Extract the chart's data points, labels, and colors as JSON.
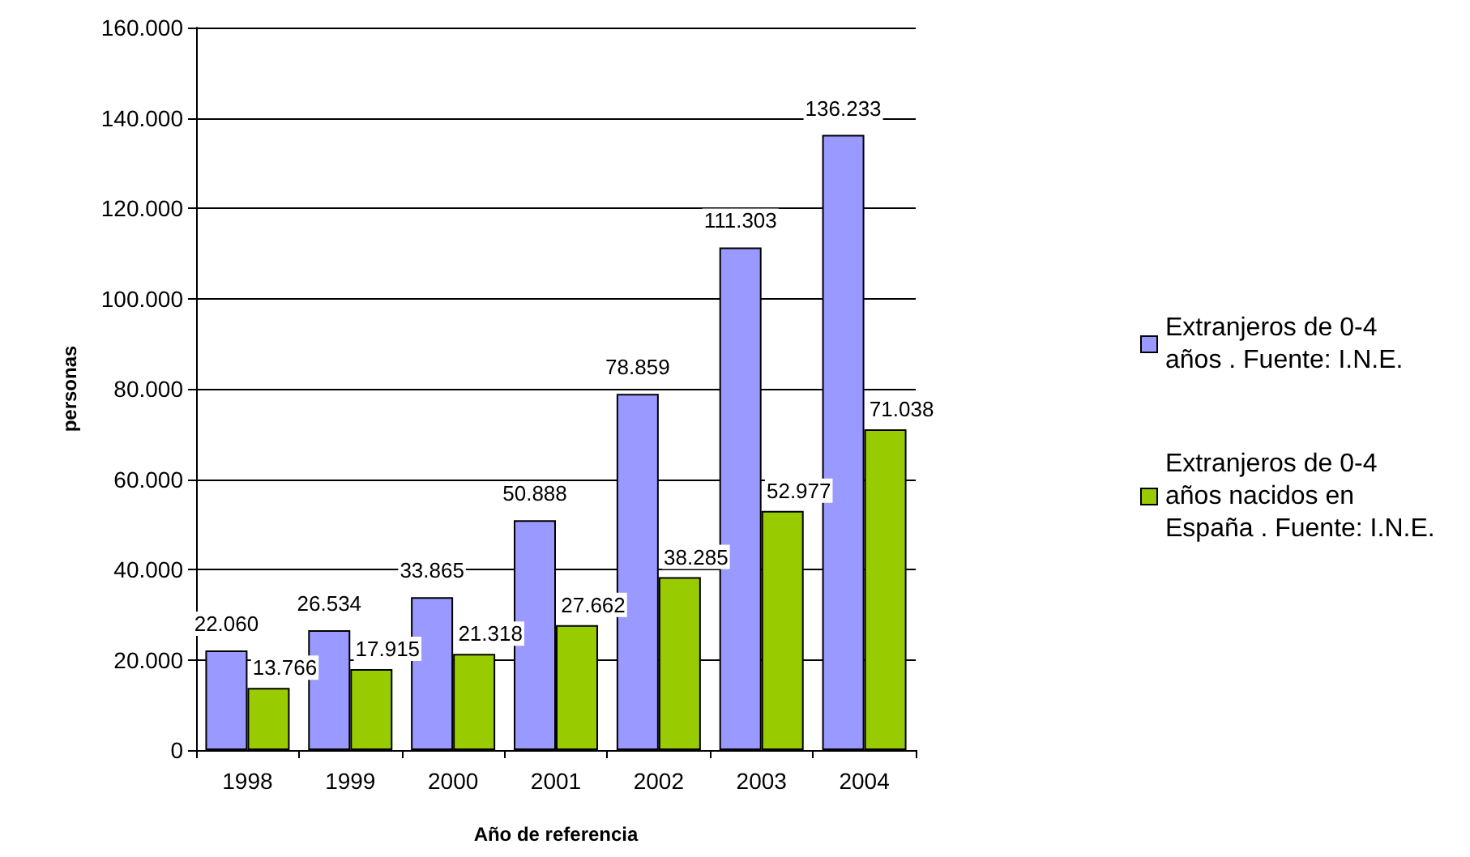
{
  "chart_data": {
    "type": "bar",
    "xlabel": "Año de referencia",
    "ylabel": "personas",
    "categories": [
      "1998",
      "1999",
      "2000",
      "2001",
      "2002",
      "2003",
      "2004"
    ],
    "series": [
      {
        "name": "Extranjeros de 0-4 años . Fuente: I.N.E.",
        "color": "#9999ff",
        "values": [
          22060,
          26534,
          33865,
          50888,
          78859,
          111303,
          136233
        ],
        "value_labels": [
          "22.060",
          "26.534",
          "33.865",
          "50.888",
          "78.859",
          "111.303",
          "136.233"
        ]
      },
      {
        "name": "Extranjeros de 0-4 años nacidos en España . Fuente: I.N.E.",
        "color": "#99cc00",
        "values": [
          13766,
          17915,
          21318,
          27662,
          38285,
          52977,
          71038
        ],
        "value_labels": [
          "13.766",
          "17.915",
          "21.318",
          "27.662",
          "38.285",
          "52.977",
          "71.038"
        ]
      }
    ],
    "ylim": [
      0,
      160000
    ],
    "yticks": [
      {
        "value": 0,
        "label": "0"
      },
      {
        "value": 20000,
        "label": "20.000"
      },
      {
        "value": 40000,
        "label": "40.000"
      },
      {
        "value": 60000,
        "label": "60.000"
      },
      {
        "value": 80000,
        "label": "80.000"
      },
      {
        "value": 100000,
        "label": "100.000"
      },
      {
        "value": 120000,
        "label": "120.000"
      },
      {
        "value": 140000,
        "label": "140.000"
      },
      {
        "value": 160000,
        "label": "160.000"
      }
    ],
    "grid": "y",
    "legend": "right"
  }
}
